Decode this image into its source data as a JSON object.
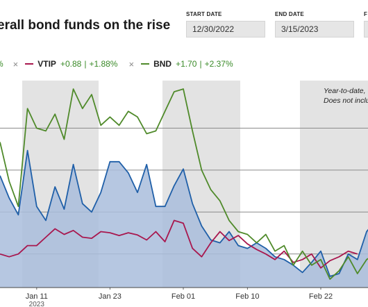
{
  "header": {
    "title": "erall bond funds on the rise",
    "start_date_label": "START DATE",
    "start_date_value": "12/30/2022",
    "end_date_label": "END DATE",
    "end_date_value": "3/15/2023",
    "cut_label": "F"
  },
  "legend": {
    "partial_text": "%",
    "items": [
      {
        "remove": "×",
        "name": "VTIP",
        "change": "+0.88",
        "sep": "|",
        "pct": "+1.88%",
        "color": "#a8174e"
      },
      {
        "remove": "×",
        "name": "BND",
        "change": "+1.70",
        "sep": "|",
        "pct": "+2.37%",
        "color": "#4f8a2a"
      }
    ]
  },
  "note": {
    "line1": "Year-to-date,",
    "line2": "Does not inclu"
  },
  "colors": {
    "blue_line": "#1f5fa8",
    "blue_fill": "#a9bddc",
    "band": "#e3e3e3",
    "grid": "#8a8a8a"
  },
  "chart_data": {
    "type": "area",
    "x_ticks": [
      {
        "label": "Jan 11",
        "sub": "2023",
        "i": 4
      },
      {
        "label": "Jan 23",
        "i": 12
      },
      {
        "label": "Feb 01",
        "i": 20
      },
      {
        "label": "Feb 10",
        "i": 27
      },
      {
        "label": "Feb 22",
        "i": 35
      }
    ],
    "ylim": [
      -0.6,
      3.1
    ],
    "gridlines": [
      0,
      0.75,
      1.5,
      2.25
    ],
    "series": [
      {
        "name": "",
        "values": [
          1.4,
          1.0,
          0.7,
          1.85,
          0.85,
          0.6,
          1.2,
          0.8,
          1.6,
          0.9,
          0.75,
          1.1,
          1.65,
          1.65,
          1.45,
          1.1,
          1.6,
          0.85,
          0.85,
          1.22,
          1.52,
          0.9,
          0.5,
          0.25,
          0.2,
          0.4,
          0.15,
          0.1,
          0.2,
          0.1,
          -0.05,
          -0.1,
          -0.2,
          -0.33,
          -0.15,
          0.05,
          -0.4,
          -0.35,
          0.0,
          -0.1,
          0.4,
          0.6,
          1.0,
          1.5
        ],
        "color": "#1f5fa8",
        "fill": true
      },
      {
        "name": "VTIP",
        "values": [
          0.0,
          -0.05,
          0.0,
          0.15,
          0.15,
          0.3,
          0.45,
          0.35,
          0.42,
          0.3,
          0.28,
          0.4,
          0.38,
          0.33,
          0.38,
          0.34,
          0.25,
          0.4,
          0.22,
          0.6,
          0.55,
          0.1,
          -0.05,
          0.2,
          0.4,
          0.24,
          0.33,
          0.18,
          0.08,
          0.0,
          -0.1,
          0.05,
          -0.15,
          -0.1,
          0.0,
          -0.25,
          -0.12,
          -0.05,
          0.05,
          0.0
        ],
        "color": "#a8174e",
        "fill": false
      },
      {
        "name": "BND",
        "values": [
          2.0,
          1.3,
          0.85,
          2.6,
          2.25,
          2.2,
          2.5,
          2.05,
          2.95,
          2.6,
          2.85,
          2.3,
          2.45,
          2.3,
          2.55,
          2.45,
          2.15,
          2.2,
          2.55,
          2.9,
          2.95,
          2.2,
          1.5,
          1.15,
          0.95,
          0.6,
          0.4,
          0.35,
          0.2,
          0.35,
          0.05,
          0.15,
          -0.2,
          0.05,
          -0.2,
          -0.1,
          -0.45,
          -0.3,
          -0.05,
          -0.35,
          -0.1,
          0.0
        ],
        "color": "#4f8a2a",
        "fill": false
      }
    ]
  }
}
